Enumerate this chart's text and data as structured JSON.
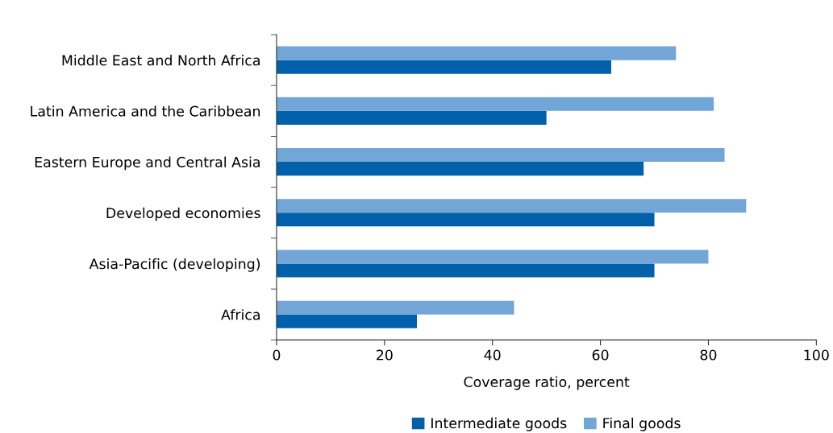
{
  "chart_data": {
    "type": "bar",
    "orientation": "horizontal",
    "xlabel": "Coverage ratio, percent",
    "categories": [
      "Middle East and North Africa",
      "Latin America and the Caribbean",
      "Eastern Europe and Central Asia",
      "Developed economies",
      "Asia-Pacific (developing)",
      "Africa"
    ],
    "series": [
      {
        "name": "Intermediate goods",
        "color": "#0061aa",
        "values": [
          62,
          50,
          68,
          70,
          70,
          26
        ]
      },
      {
        "name": "Final goods",
        "color": "#71a6d6",
        "values": [
          74,
          81,
          83,
          87,
          80,
          44
        ]
      }
    ],
    "xlim": [
      0,
      100
    ],
    "xticks": [
      0,
      20,
      40,
      60,
      80,
      100
    ],
    "grid": false,
    "legend": "bottom"
  }
}
